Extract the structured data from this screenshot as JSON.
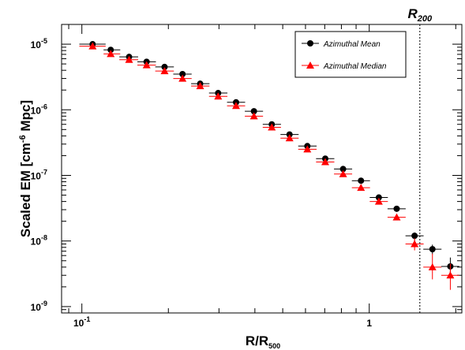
{
  "chart_data": {
    "type": "scatter",
    "xscale": "log",
    "yscale": "log",
    "xlim": [
      0.085,
      2.1
    ],
    "ylim": [
      8e-10,
      2e-05
    ],
    "xlabel": "R/R",
    "xlabel_sub": "500",
    "ylabel_pre": "Scaled EM [cm",
    "ylabel_sup": "-6",
    "ylabel_post": " Mpc]",
    "x_ticks": [
      {
        "value": 0.1,
        "label": "10",
        "sup": "-1"
      },
      {
        "value": 1,
        "label": "1",
        "sup": ""
      }
    ],
    "y_ticks": [
      {
        "value": 1e-09,
        "label": "10",
        "sup": "-9"
      },
      {
        "value": 1e-08,
        "label": "10",
        "sup": "-8"
      },
      {
        "value": 1e-07,
        "label": "10",
        "sup": "-7"
      },
      {
        "value": 1e-06,
        "label": "10",
        "sup": "-6"
      },
      {
        "value": 1e-05,
        "label": "10",
        "sup": "-5"
      }
    ],
    "reference_line": {
      "x": 1.5,
      "label": "R",
      "label_sub": "200",
      "style": "dotted"
    },
    "legend_position": "top-right",
    "series": [
      {
        "name": "Azimuthal Mean",
        "marker": "circle",
        "color": "#000000",
        "points": [
          {
            "x": 0.109,
            "xlo": 0.098,
            "xhi": 0.121,
            "y": 1e-05
          },
          {
            "x": 0.126,
            "xlo": 0.119,
            "xhi": 0.136,
            "y": 8.2e-06
          },
          {
            "x": 0.146,
            "xlo": 0.135,
            "xhi": 0.157,
            "y": 6.4e-06
          },
          {
            "x": 0.168,
            "xlo": 0.156,
            "xhi": 0.181,
            "y": 5.4e-06
          },
          {
            "x": 0.194,
            "xlo": 0.18,
            "xhi": 0.209,
            "y": 4.5e-06
          },
          {
            "x": 0.224,
            "xlo": 0.208,
            "xhi": 0.241,
            "y": 3.5e-06
          },
          {
            "x": 0.258,
            "xlo": 0.24,
            "xhi": 0.278,
            "y": 2.5e-06
          },
          {
            "x": 0.298,
            "xlo": 0.277,
            "xhi": 0.321,
            "y": 1.8e-06
          },
          {
            "x": 0.344,
            "xlo": 0.32,
            "xhi": 0.37,
            "y": 1.3e-06
          },
          {
            "x": 0.397,
            "xlo": 0.369,
            "xhi": 0.427,
            "y": 9.5e-07
          },
          {
            "x": 0.458,
            "xlo": 0.426,
            "xhi": 0.493,
            "y": 6e-07
          },
          {
            "x": 0.528,
            "xlo": 0.491,
            "xhi": 0.568,
            "y": 4.2e-07
          },
          {
            "x": 0.609,
            "xlo": 0.566,
            "xhi": 0.656,
            "y": 2.8e-07
          },
          {
            "x": 0.703,
            "xlo": 0.653,
            "xhi": 0.756,
            "y": 1.8e-07
          },
          {
            "x": 0.811,
            "xlo": 0.754,
            "xhi": 0.872,
            "y": 1.25e-07
          },
          {
            "x": 0.936,
            "xlo": 0.87,
            "xhi": 1.006,
            "y": 8.3e-08
          },
          {
            "x": 1.08,
            "xlo": 1.004,
            "xhi": 1.161,
            "y": 4.6e-08
          },
          {
            "x": 1.246,
            "xlo": 1.158,
            "xhi": 1.339,
            "y": 3.1e-08
          },
          {
            "x": 1.438,
            "xlo": 1.337,
            "xhi": 1.546,
            "y": 1.2e-08,
            "ylo": 1e-08,
            "yhi": 1.35e-08
          },
          {
            "x": 1.659,
            "xlo": 1.542,
            "xhi": 1.784,
            "y": 7.5e-09,
            "ylo": 6.3e-09,
            "yhi": 8.8e-09
          },
          {
            "x": 1.915,
            "xlo": 1.78,
            "xhi": 2.058,
            "y": 4.1e-09,
            "ylo": 3e-09,
            "yhi": 5.6e-09
          }
        ]
      },
      {
        "name": "Azimuthal Median",
        "marker": "triangle",
        "color": "#ff0000",
        "points": [
          {
            "x": 0.109,
            "xlo": 0.098,
            "xhi": 0.121,
            "y": 9.3e-06
          },
          {
            "x": 0.126,
            "xlo": 0.119,
            "xhi": 0.136,
            "y": 7.1e-06
          },
          {
            "x": 0.146,
            "xlo": 0.135,
            "xhi": 0.157,
            "y": 5.8e-06
          },
          {
            "x": 0.168,
            "xlo": 0.156,
            "xhi": 0.181,
            "y": 4.8e-06
          },
          {
            "x": 0.194,
            "xlo": 0.18,
            "xhi": 0.209,
            "y": 3.9e-06
          },
          {
            "x": 0.224,
            "xlo": 0.208,
            "xhi": 0.241,
            "y": 3e-06
          },
          {
            "x": 0.258,
            "xlo": 0.24,
            "xhi": 0.278,
            "y": 2.3e-06
          },
          {
            "x": 0.298,
            "xlo": 0.277,
            "xhi": 0.321,
            "y": 1.6e-06
          },
          {
            "x": 0.344,
            "xlo": 0.32,
            "xhi": 0.37,
            "y": 1.15e-06
          },
          {
            "x": 0.397,
            "xlo": 0.369,
            "xhi": 0.427,
            "y": 8e-07
          },
          {
            "x": 0.458,
            "xlo": 0.426,
            "xhi": 0.493,
            "y": 5.4e-07
          },
          {
            "x": 0.528,
            "xlo": 0.491,
            "xhi": 0.568,
            "y": 3.7e-07
          },
          {
            "x": 0.609,
            "xlo": 0.566,
            "xhi": 0.656,
            "y": 2.5e-07
          },
          {
            "x": 0.703,
            "xlo": 0.653,
            "xhi": 0.756,
            "y": 1.6e-07
          },
          {
            "x": 0.811,
            "xlo": 0.754,
            "xhi": 0.872,
            "y": 1.05e-07
          },
          {
            "x": 0.936,
            "xlo": 0.87,
            "xhi": 1.006,
            "y": 6.5e-08
          },
          {
            "x": 1.08,
            "xlo": 1.004,
            "xhi": 1.161,
            "y": 4e-08
          },
          {
            "x": 1.246,
            "xlo": 1.158,
            "xhi": 1.339,
            "y": 2.3e-08
          },
          {
            "x": 1.438,
            "xlo": 1.337,
            "xhi": 1.546,
            "y": 9e-09,
            "ylo": 7.2e-09,
            "yhi": 1.1e-08
          },
          {
            "x": 1.659,
            "xlo": 1.542,
            "xhi": 1.784,
            "y": 4e-09,
            "ylo": 2.6e-09,
            "yhi": 6.4e-09
          },
          {
            "x": 1.915,
            "xlo": 1.78,
            "xhi": 2.058,
            "y": 3e-09,
            "ylo": 1.8e-09,
            "yhi": 4.5e-09
          }
        ]
      }
    ]
  }
}
